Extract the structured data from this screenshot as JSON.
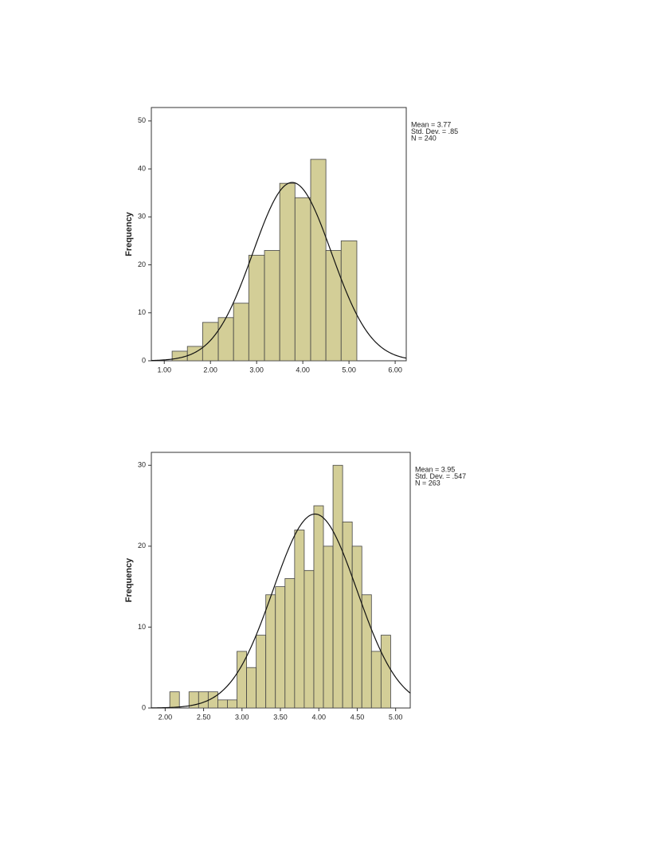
{
  "chart_data": [
    {
      "type": "histogram",
      "ylabel": "Frequency",
      "bins": [
        1.17,
        1.5,
        1.83,
        2.17,
        2.5,
        2.83,
        3.17,
        3.5,
        3.83,
        4.17,
        4.5,
        4.83,
        5.17
      ],
      "counts": [
        2,
        3,
        8,
        9,
        12,
        22,
        23,
        37,
        34,
        42,
        23,
        25
      ],
      "color": "#d3ce97",
      "xlim": [
        0.72,
        6.24
      ],
      "ylim": [
        0,
        52.8
      ],
      "xticks": [
        {
          "value": 1,
          "label": "1.00"
        },
        {
          "value": 2,
          "label": "2.00"
        },
        {
          "value": 3,
          "label": "3.00"
        },
        {
          "value": 4,
          "label": "4.00"
        },
        {
          "value": 5,
          "label": "5.00"
        },
        {
          "value": 6,
          "label": "6.00"
        }
      ],
      "yticks": [
        0,
        10,
        20,
        30,
        40,
        50
      ],
      "annotations": [
        "Mean = 3.77",
        "Std. Dev. = .85",
        "N = 240"
      ],
      "normal_curve": {
        "mean": 3.77,
        "sd": 0.85,
        "n": 240
      }
    },
    {
      "type": "histogram",
      "ylabel": "Frequency",
      "bins": [
        2.06,
        2.185,
        2.31,
        2.435,
        2.56,
        2.685,
        2.81,
        2.935,
        3.06,
        3.185,
        3.31,
        3.435,
        3.56,
        3.685,
        3.81,
        3.935,
        4.06,
        4.185,
        4.31,
        4.435,
        4.56,
        4.685,
        4.81,
        4.935
      ],
      "counts": [
        2,
        0,
        2,
        2,
        2,
        1,
        1,
        7,
        5,
        9,
        14,
        15,
        16,
        22,
        17,
        25,
        20,
        30,
        23,
        20,
        14,
        7,
        9
      ],
      "color": "#d3ce97",
      "xlim": [
        1.82,
        5.19
      ],
      "ylim": [
        0,
        31.6
      ],
      "xticks": [
        {
          "value": 2,
          "label": "2.00"
        },
        {
          "value": 2.5,
          "label": "2.50"
        },
        {
          "value": 3,
          "label": "3.00"
        },
        {
          "value": 3.5,
          "label": "3.50"
        },
        {
          "value": 4,
          "label": "4.00"
        },
        {
          "value": 4.5,
          "label": "4.50"
        },
        {
          "value": 5,
          "label": "5.00"
        }
      ],
      "yticks": [
        0,
        10,
        20,
        30
      ],
      "annotations": [
        "Mean = 3.95",
        "Std. Dev. = .547",
        "N = 263"
      ],
      "normal_curve": {
        "mean": 3.95,
        "sd": 0.547,
        "n": 263
      }
    }
  ]
}
